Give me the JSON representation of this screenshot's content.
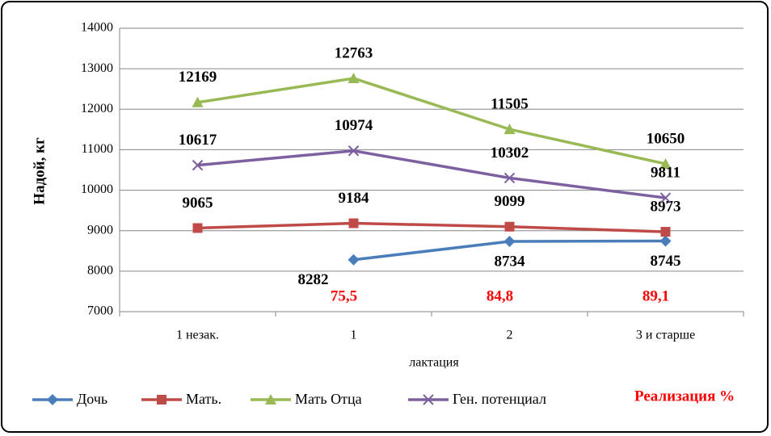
{
  "chart_data": {
    "type": "line",
    "categories": [
      "1 незак.",
      "1",
      "2",
      "3 и старше"
    ],
    "xlabel": "лактация",
    "ylabel": "Надой, кг",
    "ylim": [
      7000,
      14000
    ],
    "yticks": [
      7000,
      8000,
      9000,
      10000,
      11000,
      12000,
      13000,
      14000
    ],
    "grid": true,
    "legend": "bottom",
    "series": [
      {
        "name": "Дочь",
        "color": "#4a7ebb",
        "marker": "diamond",
        "values": [
          null,
          8282,
          8734,
          8745
        ]
      },
      {
        "name": "Мать.",
        "color": "#be4b48",
        "marker": "square",
        "values": [
          9065,
          9184,
          9099,
          8973
        ]
      },
      {
        "name": "Мать Отца",
        "color": "#98b954",
        "marker": "triangle",
        "values": [
          12169,
          12763,
          11505,
          10650
        ]
      },
      {
        "name": "Ген. потенциал",
        "color": "#7d60a0",
        "marker": "x",
        "values": [
          10617,
          10974,
          10302,
          9811
        ]
      }
    ],
    "realization": {
      "name": "Реализация %",
      "color": "#ff0000",
      "values": [
        null,
        75.5,
        84.8,
        89.1
      ],
      "value_labels": [
        null,
        "75,5",
        "84,8",
        "89,1"
      ]
    }
  }
}
